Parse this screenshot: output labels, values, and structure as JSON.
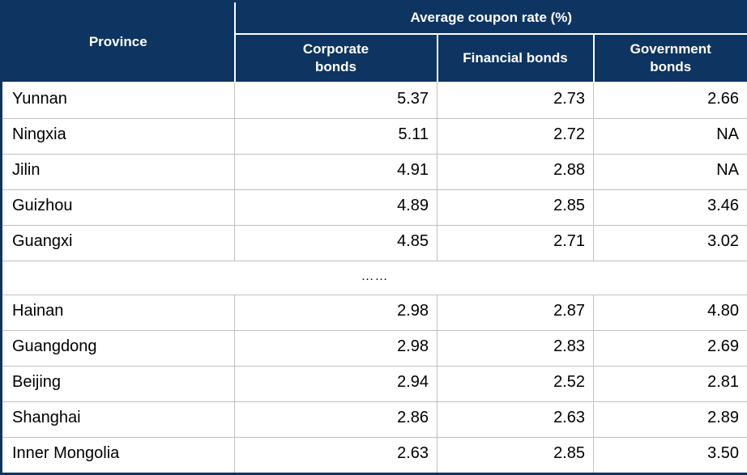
{
  "chart_data": {
    "type": "table",
    "title": "Average coupon rate (%)",
    "header": {
      "province_label": "Province",
      "group_label": "Average coupon rate (%)",
      "columns": [
        "Corporate bonds",
        "Financial bonds",
        "Government bonds"
      ]
    },
    "rows_top": [
      {
        "province": "Yunnan",
        "values": [
          "5.37",
          "2.73",
          "2.66"
        ]
      },
      {
        "province": "Ningxia",
        "values": [
          "5.11",
          "2.72",
          "NA"
        ]
      },
      {
        "province": "Jilin",
        "values": [
          "4.91",
          "2.88",
          "NA"
        ]
      },
      {
        "province": "Guizhou",
        "values": [
          "4.89",
          "2.85",
          "3.46"
        ]
      },
      {
        "province": "Guangxi",
        "values": [
          "4.85",
          "2.71",
          "3.02"
        ]
      }
    ],
    "ellipsis": "……",
    "rows_bottom": [
      {
        "province": "Hainan",
        "values": [
          "2.98",
          "2.87",
          "4.80"
        ]
      },
      {
        "province": "Guangdong",
        "values": [
          "2.98",
          "2.83",
          "2.69"
        ]
      },
      {
        "province": "Beijing",
        "values": [
          "2.94",
          "2.52",
          "2.81"
        ]
      },
      {
        "province": "Shanghai",
        "values": [
          "2.86",
          "2.63",
          "2.89"
        ]
      },
      {
        "province": "Inner Mongolia",
        "values": [
          "2.63",
          "2.85",
          "3.50"
        ]
      }
    ],
    "layout": {
      "missing_value_label": "NA",
      "grid": "on",
      "value_alignment": "right"
    }
  },
  "colors": {
    "header_bg": "#0e3461",
    "header_text": "#ffffff",
    "grid_line": "#c0c0c0",
    "outer_border": "#0e3461",
    "body_text": "#000000",
    "body_bg": "#ffffff"
  }
}
